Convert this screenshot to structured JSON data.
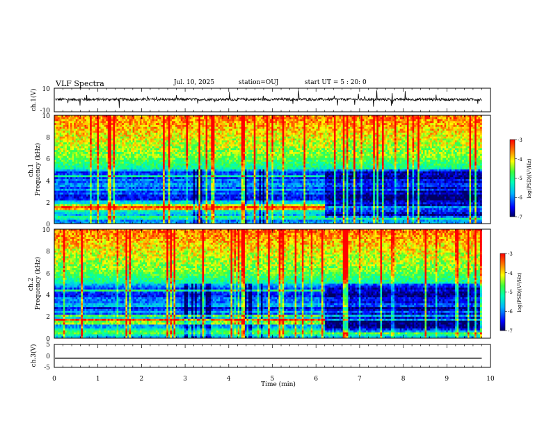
{
  "header": {
    "title": "VLF Spectra",
    "date": "Jul. 10, 2025",
    "station": "station=OUJ",
    "start": "start UT =  5 : 20: 0"
  },
  "chart_data": [
    {
      "type": "line",
      "panel": "ch1-waveform",
      "ylabel": "ch.1(V)",
      "ylim": [
        -10,
        10
      ],
      "yticks": [
        "10",
        "-10"
      ],
      "xlim": [
        0,
        10
      ],
      "data_end": 9.8,
      "baseline": 0.5,
      "color": "#000000"
    },
    {
      "type": "heatmap",
      "panel": "ch1-spectrogram",
      "ylabel": "ch.1\nFrequency (kHz)",
      "ylim": [
        0,
        10
      ],
      "yticks": [
        "10",
        "8",
        "6",
        "4",
        "2",
        "0"
      ],
      "xlim": [
        0,
        10
      ],
      "data_end": 9.8,
      "regime_change_min": 6.2,
      "colorbar": {
        "label": "log(PSD)(V²/Hz)",
        "range": [
          -7,
          -3
        ],
        "ticks": [
          "-3",
          "-4",
          "-5",
          "-6",
          "-7"
        ]
      }
    },
    {
      "type": "heatmap",
      "panel": "ch2-spectrogram",
      "ylabel": "ch.2\nFrequency (kHz)",
      "ylim": [
        0,
        10
      ],
      "yticks": [
        "10",
        "8",
        "6",
        "4",
        "2",
        "0"
      ],
      "xlim": [
        0,
        10
      ],
      "data_end": 9.8,
      "regime_change_min": 6.2,
      "colorbar": {
        "label": "log(PSD)(V²/Hz)",
        "range": [
          -7,
          -3
        ],
        "ticks": [
          "-3",
          "-4",
          "-5",
          "-6",
          "-7"
        ]
      }
    },
    {
      "type": "line",
      "panel": "ch3-waveform",
      "ylabel": "ch.3(V)",
      "ylim": [
        -5,
        5
      ],
      "yticks": [
        "5",
        "0",
        "-5"
      ],
      "xlim": [
        0,
        10
      ],
      "data_end": 9.8,
      "constant_value": -1,
      "xlabel": "Time (min)",
      "xticks": [
        "0",
        "1",
        "2",
        "3",
        "4",
        "5",
        "6",
        "7",
        "8",
        "9",
        "10"
      ],
      "color": "#000000"
    }
  ]
}
